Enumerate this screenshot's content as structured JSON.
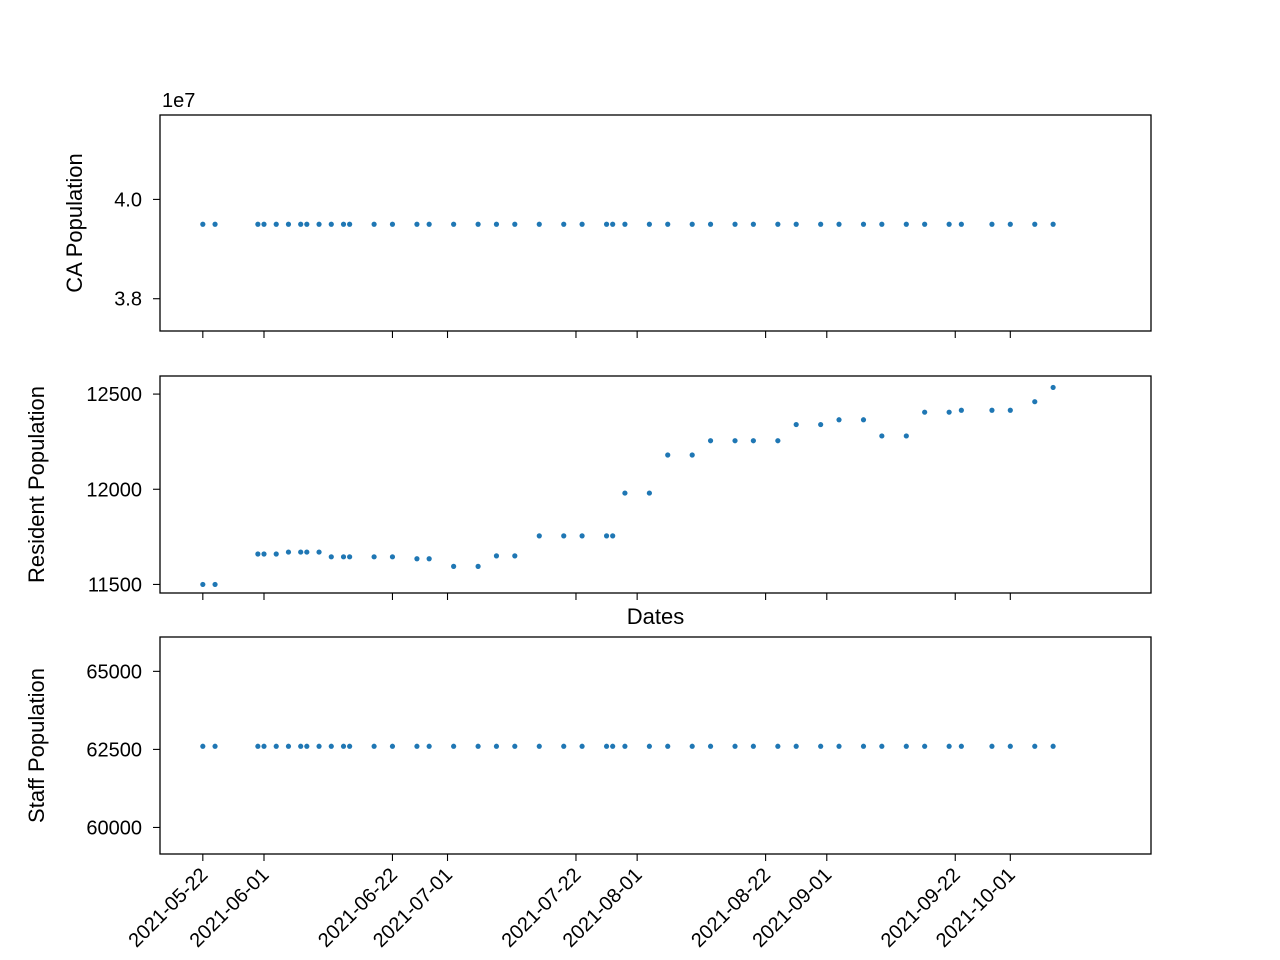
{
  "chart_data": [
    {
      "type": "scatter",
      "name": "ca-population",
      "ylabel": "CA Population",
      "xlabel": "",
      "offset_text": "1e7",
      "ylim": [
        37350000.0,
        41700000.0
      ],
      "yticks": [
        38000000.0,
        40000000.0
      ],
      "ytick_labels": [
        "3.8",
        "4.0"
      ],
      "x": [
        "2021-05-22",
        "2021-05-24",
        "2021-05-31",
        "2021-06-01",
        "2021-06-03",
        "2021-06-05",
        "2021-06-07",
        "2021-06-08",
        "2021-06-10",
        "2021-06-12",
        "2021-06-14",
        "2021-06-15",
        "2021-06-19",
        "2021-06-22",
        "2021-06-26",
        "2021-06-28",
        "2021-07-02",
        "2021-07-06",
        "2021-07-09",
        "2021-07-12",
        "2021-07-16",
        "2021-07-20",
        "2021-07-23",
        "2021-07-27",
        "2021-07-28",
        "2021-07-30",
        "2021-08-03",
        "2021-08-06",
        "2021-08-10",
        "2021-08-13",
        "2021-08-17",
        "2021-08-20",
        "2021-08-24",
        "2021-08-27",
        "2021-08-31",
        "2021-09-03",
        "2021-09-07",
        "2021-09-10",
        "2021-09-14",
        "2021-09-17",
        "2021-09-21",
        "2021-09-23",
        "2021-09-28",
        "2021-10-01",
        "2021-10-05",
        "2021-10-08"
      ],
      "y": [
        39500000.0,
        39500000.0,
        39500000.0,
        39500000.0,
        39500000.0,
        39500000.0,
        39500000.0,
        39500000.0,
        39500000.0,
        39500000.0,
        39500000.0,
        39500000.0,
        39500000.0,
        39500000.0,
        39500000.0,
        39500000.0,
        39500000.0,
        39500000.0,
        39500000.0,
        39500000.0,
        39500000.0,
        39500000.0,
        39500000.0,
        39500000.0,
        39500000.0,
        39500000.0,
        39500000.0,
        39500000.0,
        39500000.0,
        39500000.0,
        39500000.0,
        39500000.0,
        39500000.0,
        39500000.0,
        39500000.0,
        39500000.0,
        39500000.0,
        39500000.0,
        39500000.0,
        39500000.0,
        39500000.0,
        39500000.0,
        39500000.0,
        39500000.0,
        39500000.0,
        39500000.0
      ],
      "show_xtick_labels": false
    },
    {
      "type": "scatter",
      "name": "resident-population",
      "ylabel": "Resident Population",
      "xlabel": "Dates",
      "ylim": [
        11455,
        12595
      ],
      "yticks": [
        11500,
        12000,
        12500
      ],
      "ytick_labels": [
        "11500",
        "12000",
        "12500"
      ],
      "x": [
        "2021-05-22",
        "2021-05-24",
        "2021-05-31",
        "2021-06-01",
        "2021-06-03",
        "2021-06-05",
        "2021-06-07",
        "2021-06-08",
        "2021-06-10",
        "2021-06-12",
        "2021-06-14",
        "2021-06-15",
        "2021-06-19",
        "2021-06-22",
        "2021-06-26",
        "2021-06-28",
        "2021-07-02",
        "2021-07-06",
        "2021-07-09",
        "2021-07-12",
        "2021-07-16",
        "2021-07-20",
        "2021-07-23",
        "2021-07-27",
        "2021-07-28",
        "2021-07-30",
        "2021-08-03",
        "2021-08-06",
        "2021-08-10",
        "2021-08-13",
        "2021-08-17",
        "2021-08-20",
        "2021-08-24",
        "2021-08-27",
        "2021-08-31",
        "2021-09-03",
        "2021-09-07",
        "2021-09-10",
        "2021-09-14",
        "2021-09-17",
        "2021-09-21",
        "2021-09-23",
        "2021-09-28",
        "2021-10-01",
        "2021-10-05",
        "2021-10-08"
      ],
      "y": [
        11500,
        11500,
        11660,
        11660,
        11660,
        11670,
        11670,
        11670,
        11670,
        11645,
        11645,
        11645,
        11645,
        11645,
        11635,
        11635,
        11595,
        11595,
        11650,
        11650,
        11755,
        11755,
        11755,
        11755,
        11755,
        11980,
        11980,
        12180,
        12180,
        12255,
        12255,
        12255,
        12255,
        12340,
        12340,
        12365,
        12365,
        12280,
        12280,
        12405,
        12405,
        12415,
        12415,
        12415,
        12460,
        12535
      ],
      "show_xtick_labels": false
    },
    {
      "type": "scatter",
      "name": "staff-population",
      "ylabel": "Staff Population",
      "xlabel": "",
      "ylim": [
        59150,
        66100
      ],
      "yticks": [
        60000,
        62500,
        65000
      ],
      "ytick_labels": [
        "60000",
        "62500",
        "65000"
      ],
      "x": [
        "2021-05-22",
        "2021-05-24",
        "2021-05-31",
        "2021-06-01",
        "2021-06-03",
        "2021-06-05",
        "2021-06-07",
        "2021-06-08",
        "2021-06-10",
        "2021-06-12",
        "2021-06-14",
        "2021-06-15",
        "2021-06-19",
        "2021-06-22",
        "2021-06-26",
        "2021-06-28",
        "2021-07-02",
        "2021-07-06",
        "2021-07-09",
        "2021-07-12",
        "2021-07-16",
        "2021-07-20",
        "2021-07-23",
        "2021-07-27",
        "2021-07-28",
        "2021-07-30",
        "2021-08-03",
        "2021-08-06",
        "2021-08-10",
        "2021-08-13",
        "2021-08-17",
        "2021-08-20",
        "2021-08-24",
        "2021-08-27",
        "2021-08-31",
        "2021-09-03",
        "2021-09-07",
        "2021-09-10",
        "2021-09-14",
        "2021-09-17",
        "2021-09-21",
        "2021-09-23",
        "2021-09-28",
        "2021-10-01",
        "2021-10-05",
        "2021-10-08"
      ],
      "y": [
        62600,
        62600,
        62600,
        62600,
        62600,
        62600,
        62600,
        62600,
        62600,
        62600,
        62600,
        62600,
        62600,
        62600,
        62600,
        62600,
        62600,
        62600,
        62600,
        62600,
        62600,
        62600,
        62600,
        62600,
        62600,
        62600,
        62600,
        62600,
        62600,
        62600,
        62600,
        62600,
        62600,
        62600,
        62600,
        62600,
        62600,
        62600,
        62600,
        62600,
        62600,
        62600,
        62600,
        62600,
        62600,
        62600
      ],
      "show_xtick_labels": true
    }
  ],
  "shared_x": {
    "xlim": [
      "2021-05-15",
      "2021-10-24"
    ],
    "ticks": [
      "2021-05-22",
      "2021-06-01",
      "2021-06-22",
      "2021-07-01",
      "2021-07-22",
      "2021-08-01",
      "2021-08-22",
      "2021-09-01",
      "2021-09-22",
      "2021-10-01"
    ],
    "tick_labels": [
      "2021-05-22",
      "2021-06-01",
      "2021-06-22",
      "2021-07-01",
      "2021-07-22",
      "2021-08-01",
      "2021-08-22",
      "2021-09-01",
      "2021-09-22",
      "2021-10-01"
    ]
  },
  "colors": {
    "points": "#1f77b4",
    "axes": "#000000"
  }
}
